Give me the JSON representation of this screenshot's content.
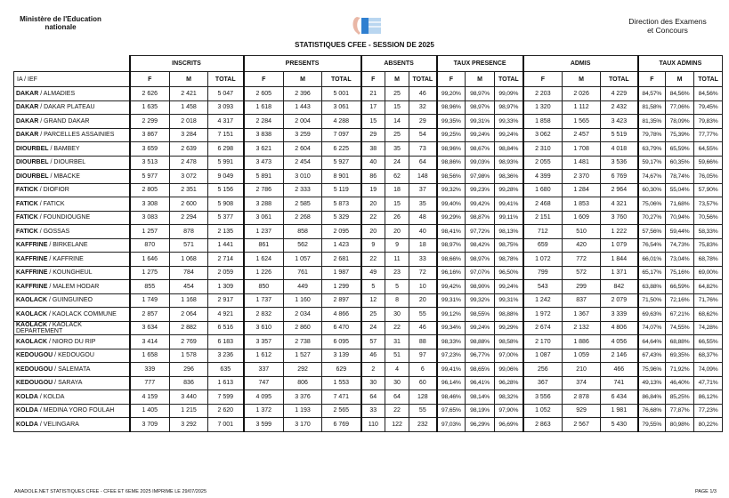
{
  "header": {
    "left_line1": "Ministère de l'Education",
    "left_line2": "nationale",
    "right_line1": "Direction des Examens",
    "right_line2": "et Concours",
    "title": "STATISTIQUES CFEE  - SESSION DE 2025"
  },
  "table": {
    "groups": [
      "INSCRITS",
      "PRESENTS",
      "ABSENTS",
      "TAUX PRESENCE",
      "ADMIS",
      "TAUX ADMINS"
    ],
    "first_col": "IA / IEF",
    "subcols": [
      "F",
      "M",
      "TOTAL"
    ],
    "rows": [
      [
        "DAKAR",
        "ALMADIES",
        "2 626",
        "2 421",
        "5 047",
        "2 605",
        "2 396",
        "5 001",
        "21",
        "25",
        "46",
        "99,20%",
        "98,97%",
        "99,09%",
        "2 203",
        "2 026",
        "4 229",
        "84,57%",
        "84,56%",
        "84,56%"
      ],
      [
        "DAKAR",
        "DAKAR PLATEAU",
        "1 635",
        "1 458",
        "3 093",
        "1 618",
        "1 443",
        "3 061",
        "17",
        "15",
        "32",
        "98,96%",
        "98,97%",
        "98,97%",
        "1 320",
        "1 112",
        "2 432",
        "81,58%",
        "77,06%",
        "79,45%"
      ],
      [
        "DAKAR",
        "GRAND DAKAR",
        "2 299",
        "2 018",
        "4 317",
        "2 284",
        "2 004",
        "4 288",
        "15",
        "14",
        "29",
        "99,35%",
        "99,31%",
        "99,33%",
        "1 858",
        "1 565",
        "3 423",
        "81,35%",
        "78,09%",
        "79,83%"
      ],
      [
        "DAKAR",
        "PARCELLES ASSAINIES",
        "3 867",
        "3 284",
        "7 151",
        "3 838",
        "3 259",
        "7 097",
        "29",
        "25",
        "54",
        "99,25%",
        "99,24%",
        "99,24%",
        "3 062",
        "2 457",
        "5 519",
        "79,78%",
        "75,39%",
        "77,77%"
      ],
      [
        "DIOURBEL",
        "BAMBEY",
        "3 659",
        "2 639",
        "6 298",
        "3 621",
        "2 604",
        "6 225",
        "38",
        "35",
        "73",
        "98,96%",
        "98,67%",
        "98,84%",
        "2 310",
        "1 708",
        "4 018",
        "63,79%",
        "65,59%",
        "64,55%"
      ],
      [
        "DIOURBEL",
        "DIOURBEL",
        "3 513",
        "2 478",
        "5 991",
        "3 473",
        "2 454",
        "5 927",
        "40",
        "24",
        "64",
        "98,86%",
        "99,03%",
        "98,93%",
        "2 055",
        "1 481",
        "3 536",
        "59,17%",
        "60,35%",
        "59,66%"
      ],
      [
        "DIOURBEL",
        "MBACKE",
        "5 977",
        "3 072",
        "9 049",
        "5 891",
        "3 010",
        "8 901",
        "86",
        "62",
        "148",
        "98,56%",
        "97,98%",
        "98,36%",
        "4 399",
        "2 370",
        "6 769",
        "74,67%",
        "78,74%",
        "76,05%"
      ],
      [
        "FATICK",
        "DIOFIOR",
        "2 805",
        "2 351",
        "5 156",
        "2 786",
        "2 333",
        "5 119",
        "19",
        "18",
        "37",
        "99,32%",
        "99,23%",
        "99,28%",
        "1 680",
        "1 284",
        "2 964",
        "60,30%",
        "55,04%",
        "57,90%"
      ],
      [
        "FATICK",
        "FATICK",
        "3 308",
        "2 600",
        "5 908",
        "3 288",
        "2 585",
        "5 873",
        "20",
        "15",
        "35",
        "99,40%",
        "99,42%",
        "99,41%",
        "2 468",
        "1 853",
        "4 321",
        "75,06%",
        "71,68%",
        "73,57%"
      ],
      [
        "FATICK",
        "FOUNDIOUGNE",
        "3 083",
        "2 294",
        "5 377",
        "3 061",
        "2 268",
        "5 329",
        "22",
        "26",
        "48",
        "99,29%",
        "98,87%",
        "99,11%",
        "2 151",
        "1 609",
        "3 760",
        "70,27%",
        "70,94%",
        "70,56%"
      ],
      [
        "FATICK",
        "GOSSAS",
        "1 257",
        "878",
        "2 135",
        "1 237",
        "858",
        "2 095",
        "20",
        "20",
        "40",
        "98,41%",
        "97,72%",
        "98,13%",
        "712",
        "510",
        "1 222",
        "57,56%",
        "59,44%",
        "58,33%"
      ],
      [
        "KAFFRINE",
        "BIRKELANE",
        "870",
        "571",
        "1 441",
        "861",
        "562",
        "1 423",
        "9",
        "9",
        "18",
        "98,97%",
        "98,42%",
        "98,75%",
        "659",
        "420",
        "1 079",
        "76,54%",
        "74,73%",
        "75,83%"
      ],
      [
        "KAFFRINE",
        "KAFFRINE",
        "1 646",
        "1 068",
        "2 714",
        "1 624",
        "1 057",
        "2 681",
        "22",
        "11",
        "33",
        "98,66%",
        "98,97%",
        "98,78%",
        "1 072",
        "772",
        "1 844",
        "66,01%",
        "73,04%",
        "68,78%"
      ],
      [
        "KAFFRINE",
        "KOUNGHEUL",
        "1 275",
        "784",
        "2 059",
        "1 226",
        "761",
        "1 987",
        "49",
        "23",
        "72",
        "96,16%",
        "97,07%",
        "96,50%",
        "799",
        "572",
        "1 371",
        "65,17%",
        "75,16%",
        "69,00%"
      ],
      [
        "KAFFRINE",
        "MALEM HODAR",
        "855",
        "454",
        "1 309",
        "850",
        "449",
        "1 299",
        "5",
        "5",
        "10",
        "99,42%",
        "98,90%",
        "99,24%",
        "543",
        "299",
        "842",
        "63,88%",
        "66,59%",
        "64,82%"
      ],
      [
        "KAOLACK",
        "GUINGUINEO",
        "1 749",
        "1 168",
        "2 917",
        "1 737",
        "1 160",
        "2 897",
        "12",
        "8",
        "20",
        "99,31%",
        "99,32%",
        "99,31%",
        "1 242",
        "837",
        "2 079",
        "71,50%",
        "72,16%",
        "71,76%"
      ],
      [
        "KAOLACK",
        "KAOLACK COMMUNE",
        "2 857",
        "2 064",
        "4 921",
        "2 832",
        "2 034",
        "4 866",
        "25",
        "30",
        "55",
        "99,12%",
        "98,55%",
        "98,88%",
        "1 972",
        "1 367",
        "3 339",
        "69,63%",
        "67,21%",
        "68,62%"
      ],
      [
        "KAOLACK",
        "KAOLACK DEPARTEMENT",
        "3 634",
        "2 882",
        "6 516",
        "3 610",
        "2 860",
        "6 470",
        "24",
        "22",
        "46",
        "99,34%",
        "99,24%",
        "99,29%",
        "2 674",
        "2 132",
        "4 806",
        "74,07%",
        "74,55%",
        "74,28%"
      ],
      [
        "KAOLACK",
        "NIORO DU RIP",
        "3 414",
        "2 769",
        "6 183",
        "3 357",
        "2 738",
        "6 095",
        "57",
        "31",
        "88",
        "98,33%",
        "98,88%",
        "98,58%",
        "2 170",
        "1 886",
        "4 056",
        "64,64%",
        "68,88%",
        "66,55%"
      ],
      [
        "KEDOUGOU",
        "KEDOUGOU",
        "1 658",
        "1 578",
        "3 236",
        "1 612",
        "1 527",
        "3 139",
        "46",
        "51",
        "97",
        "97,23%",
        "96,77%",
        "97,00%",
        "1 087",
        "1 059",
        "2 146",
        "67,43%",
        "69,35%",
        "68,37%"
      ],
      [
        "KEDOUGOU",
        "SALEMATA",
        "339",
        "296",
        "635",
        "337",
        "292",
        "629",
        "2",
        "4",
        "6",
        "99,41%",
        "98,65%",
        "99,06%",
        "256",
        "210",
        "466",
        "75,96%",
        "71,92%",
        "74,09%"
      ],
      [
        "KEDOUGOU",
        "SARAYA",
        "777",
        "836",
        "1 613",
        "747",
        "806",
        "1 553",
        "30",
        "30",
        "60",
        "96,14%",
        "96,41%",
        "96,28%",
        "367",
        "374",
        "741",
        "49,13%",
        "46,40%",
        "47,71%"
      ],
      [
        "KOLDA",
        "KOLDA",
        "4 159",
        "3 440",
        "7 599",
        "4 095",
        "3 376",
        "7 471",
        "64",
        "64",
        "128",
        "98,46%",
        "98,14%",
        "98,32%",
        "3 556",
        "2 878",
        "6 434",
        "86,84%",
        "85,25%",
        "86,12%"
      ],
      [
        "KOLDA",
        "MEDINA YORO FOULAH",
        "1 405",
        "1 215",
        "2 620",
        "1 372",
        "1 193",
        "2 565",
        "33",
        "22",
        "55",
        "97,65%",
        "98,19%",
        "97,90%",
        "1 052",
        "929",
        "1 981",
        "76,68%",
        "77,87%",
        "77,23%"
      ],
      [
        "KOLDA",
        "VELINGARA",
        "3 709",
        "3 292",
        "7 001",
        "3 599",
        "3 170",
        "6 769",
        "110",
        "122",
        "232",
        "97,03%",
        "96,29%",
        "96,69%",
        "2 863",
        "2 567",
        "5 430",
        "79,55%",
        "80,98%",
        "80,22%"
      ]
    ]
  },
  "footer": {
    "left": "ANADOLE.NET STATISTIQUES CFEE - CFEE ET 6EME 2025 IMPRIME LE 29/07/2025",
    "right": "PAGE 1/3"
  }
}
